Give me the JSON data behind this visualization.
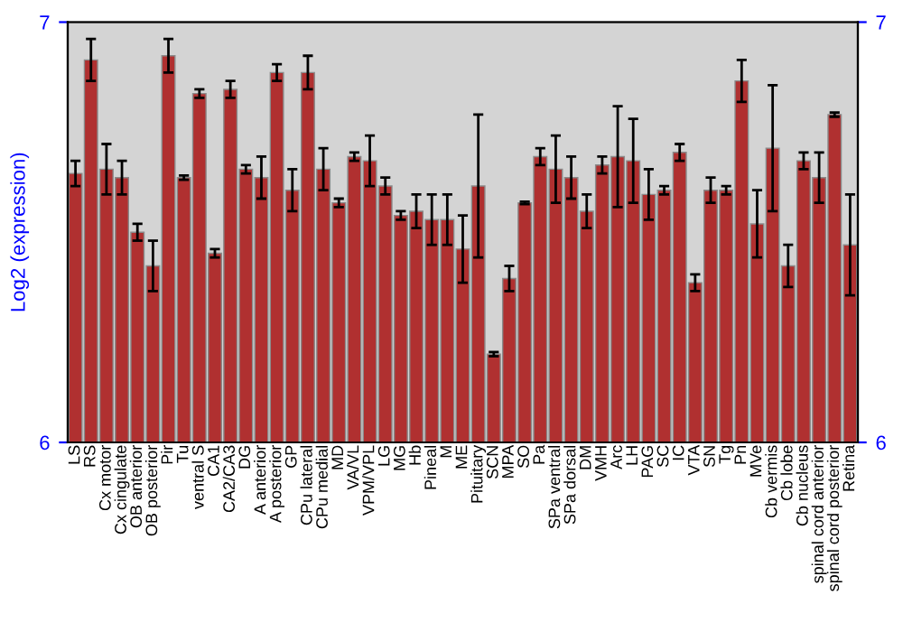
{
  "chart_data": {
    "type": "bar",
    "ylabel": "Log2 (expression)",
    "categories": [
      "LS",
      "RS",
      "Cx motor",
      "Cx cingulate",
      "OB anterior",
      "OB posterior",
      "Pir",
      "Tu",
      "ventral S",
      "CA1",
      "CA2/CA3",
      "DG",
      "A anterior",
      "A posterior",
      "GP",
      "CPu lateral",
      "CPu medial",
      "MD",
      "VA/VL",
      "VPM/VPL",
      "LG",
      "MG",
      "Hb",
      "Pineal",
      "M",
      "ME",
      "Pituitary",
      "SCN",
      "MPA",
      "SO",
      "Pa",
      "SPa ventral",
      "SPa dorsal",
      "DM",
      "VMH",
      "Arc",
      "LH",
      "PAG",
      "SC",
      "IC",
      "VTA",
      "SN",
      "Tg",
      "Pn",
      "MVe",
      "Cb vermis",
      "Cb lobe",
      "Cb nucleus",
      "spinal cord anterior",
      "spinal cord posterior",
      "Retina"
    ],
    "series": [
      {
        "color": "#b03030",
        "values": [
          6.64,
          6.91,
          6.65,
          6.63,
          6.5,
          6.42,
          6.92,
          6.63,
          6.83,
          6.45,
          6.84,
          6.65,
          6.63,
          6.88,
          6.6,
          6.88,
          6.65,
          6.57,
          6.68,
          6.67,
          6.61,
          6.54,
          6.55,
          6.53,
          6.53,
          6.46,
          6.61,
          6.21,
          6.39,
          6.57,
          6.68,
          6.65,
          6.63,
          6.55,
          6.66,
          6.68,
          6.67,
          6.59,
          6.6,
          6.69,
          6.38,
          6.6,
          6.6,
          6.86,
          6.52,
          6.7,
          6.42,
          6.67,
          6.63,
          6.78,
          6.47
        ],
        "errors": [
          0.03,
          0.05,
          0.06,
          0.04,
          0.02,
          0.06,
          0.04,
          0.005,
          0.01,
          0.01,
          0.02,
          0.01,
          0.05,
          0.02,
          0.05,
          0.04,
          0.05,
          0.01,
          0.01,
          0.06,
          0.02,
          0.01,
          0.04,
          0.06,
          0.06,
          0.08,
          0.17,
          0.005,
          0.03,
          0.003,
          0.02,
          0.08,
          0.05,
          0.04,
          0.02,
          0.12,
          0.1,
          0.06,
          0.01,
          0.02,
          0.02,
          0.03,
          0.01,
          0.05,
          0.08,
          0.15,
          0.05,
          0.02,
          0.06,
          0.005,
          0.12
        ]
      }
    ],
    "ylim": [
      6,
      7
    ],
    "yticks": [
      6,
      7
    ],
    "y2lim": [
      6,
      7
    ],
    "y2ticks": [
      6,
      7
    ],
    "grid": false,
    "legend": false
  }
}
